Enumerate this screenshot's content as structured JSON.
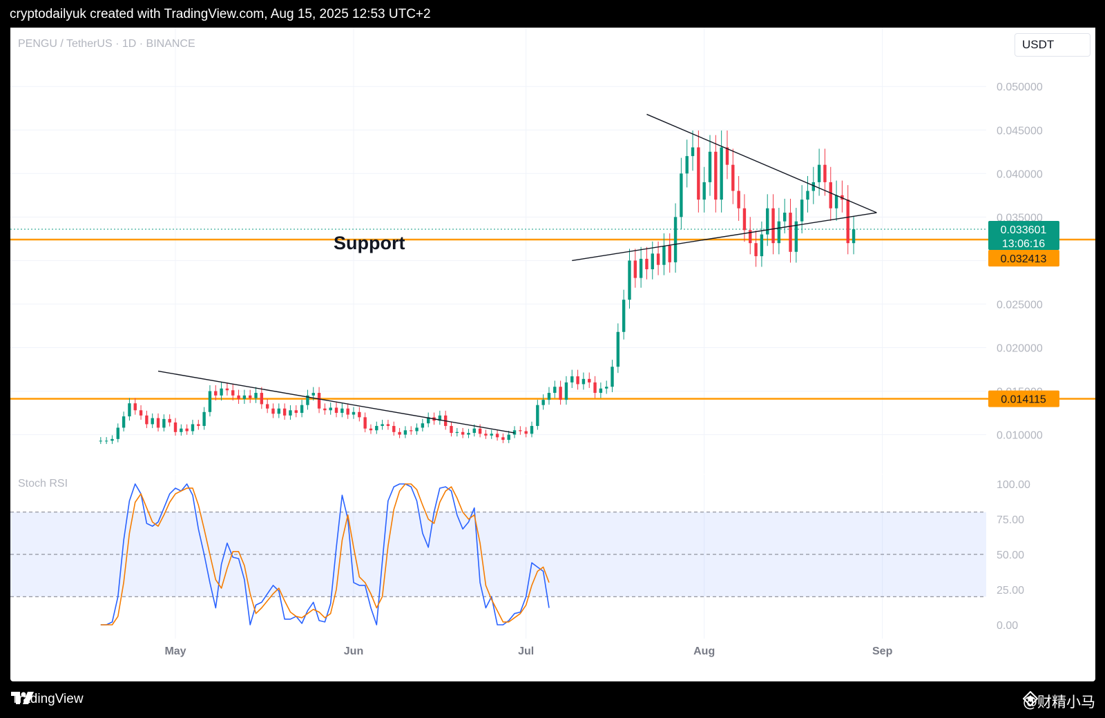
{
  "header": {
    "caption": "cryptodailyuk created with TradingView.com, Aug 15, 2025 12:53 UTC+2"
  },
  "footer": {
    "brand": "TradingView",
    "watermark": "@财精小马"
  },
  "chart_data": [
    {
      "type": "candlestick",
      "title": "PENGU / TetherUS · 1D · BINANCE",
      "currency_button": "USDT",
      "y_ticks": [
        "0.050000",
        "0.045000",
        "0.040000",
        "0.035000",
        "0.030000",
        "0.025000",
        "0.020000",
        "0.015000",
        "0.010000"
      ],
      "y_range": [
        0.006,
        0.052
      ],
      "x_ticks": [
        "May",
        "Jun",
        "Jul",
        "Aug",
        "Sep"
      ],
      "x_tick_dates": [
        "2025-05-01",
        "2025-06-01",
        "2025-07-01",
        "2025-08-01",
        "2025-09-01"
      ],
      "current_price": {
        "value": "0.033601",
        "countdown": "13:06:16",
        "color": "#089981"
      },
      "horizontal_levels": [
        {
          "value": 0.032413,
          "label": "0.032413",
          "color": "#ff9800"
        },
        {
          "value": 0.014115,
          "label": "0.014115",
          "color": "#ff9800"
        }
      ],
      "annotation": "Support",
      "colors": {
        "up": "#089981",
        "down": "#f23645"
      },
      "candles_close": [
        0.0093,
        0.0093,
        0.0095,
        0.0108,
        0.0121,
        0.0136,
        0.0128,
        0.0122,
        0.0112,
        0.0119,
        0.0108,
        0.0118,
        0.0114,
        0.0103,
        0.0107,
        0.0104,
        0.0112,
        0.011,
        0.0126,
        0.015,
        0.0145,
        0.0153,
        0.0151,
        0.0145,
        0.0141,
        0.0145,
        0.0142,
        0.0148,
        0.0135,
        0.013,
        0.0124,
        0.013,
        0.0122,
        0.0128,
        0.0125,
        0.0134,
        0.0145,
        0.0148,
        0.013,
        0.0128,
        0.0131,
        0.0125,
        0.013,
        0.0123,
        0.0126,
        0.012,
        0.0107,
        0.0105,
        0.011,
        0.0112,
        0.011,
        0.0103,
        0.01,
        0.0105,
        0.0104,
        0.0108,
        0.0113,
        0.012,
        0.0116,
        0.0122,
        0.011,
        0.0102,
        0.0103,
        0.01,
        0.0102,
        0.0107,
        0.0101,
        0.0099,
        0.0101,
        0.0097,
        0.0094,
        0.01,
        0.0105,
        0.0104,
        0.0101,
        0.011,
        0.0134,
        0.014,
        0.0148,
        0.0155,
        0.014,
        0.016,
        0.0167,
        0.0158,
        0.0164,
        0.016,
        0.0148,
        0.0153,
        0.0155,
        0.0178,
        0.0218,
        0.0255,
        0.03,
        0.028,
        0.0302,
        0.029,
        0.0308,
        0.0295,
        0.0317,
        0.0298,
        0.035,
        0.04,
        0.042,
        0.043,
        0.037,
        0.039,
        0.0425,
        0.037,
        0.043,
        0.041,
        0.038,
        0.036,
        0.0335,
        0.032,
        0.0305,
        0.033,
        0.036,
        0.032,
        0.0345,
        0.0355,
        0.031,
        0.0345,
        0.037,
        0.038,
        0.039,
        0.041,
        0.039,
        0.036,
        0.0375,
        0.037,
        0.032,
        0.0336
      ],
      "lower_triangle_line": {
        "start": [
          "2025-04-28",
          0.0173
        ],
        "end": [
          "2025-06-29",
          0.0102
        ]
      },
      "symmetric_triangle": {
        "upper": {
          "start": [
            "2025-07-22",
            0.0468
          ],
          "end": [
            "2025-08-31",
            0.0355
          ]
        },
        "lower": {
          "start": [
            "2025-07-09",
            0.03
          ],
          "end": [
            "2025-08-31",
            0.0355
          ]
        }
      }
    },
    {
      "type": "line",
      "title": "Stoch RSI",
      "y_ticks": [
        "100.00",
        "75.00",
        "50.00",
        "25.00",
        "0.00"
      ],
      "y_range": [
        0,
        100
      ],
      "bands": {
        "upper": 80,
        "middle": 50,
        "lower": 20
      },
      "series": [
        {
          "color": "#2962ff",
          "values": [
            0,
            0,
            2,
            20,
            60,
            88,
            100,
            93,
            72,
            70,
            73,
            83,
            93,
            97,
            95,
            100,
            92,
            68,
            50,
            30,
            12,
            43,
            58,
            48,
            47,
            32,
            0,
            14,
            16,
            22,
            28,
            24,
            4,
            4,
            6,
            1,
            10,
            16,
            3,
            2,
            15,
            55,
            92,
            75,
            30,
            28,
            28,
            12,
            0,
            45,
            88,
            98,
            100,
            100,
            98,
            88,
            65,
            55,
            80,
            97,
            98,
            95,
            78,
            68,
            73,
            83,
            30,
            12,
            20,
            0,
            0,
            3,
            8,
            9,
            20,
            44,
            41,
            38,
            12
          ]
        },
        {
          "color": "#f57c00",
          "values": [
            0,
            0,
            0,
            6,
            30,
            65,
            87,
            93,
            83,
            73,
            70,
            78,
            87,
            93,
            95,
            97,
            97,
            85,
            68,
            50,
            32,
            26,
            40,
            52,
            52,
            42,
            22,
            8,
            12,
            17,
            22,
            26,
            17,
            9,
            6,
            5,
            8,
            11,
            9,
            5,
            8,
            25,
            60,
            78,
            55,
            34,
            30,
            22,
            12,
            20,
            56,
            82,
            95,
            100,
            100,
            96,
            85,
            75,
            72,
            87,
            95,
            98,
            90,
            80,
            75,
            78,
            58,
            28,
            18,
            10,
            2,
            2,
            5,
            8,
            14,
            28,
            38,
            41,
            30
          ]
        }
      ]
    }
  ]
}
